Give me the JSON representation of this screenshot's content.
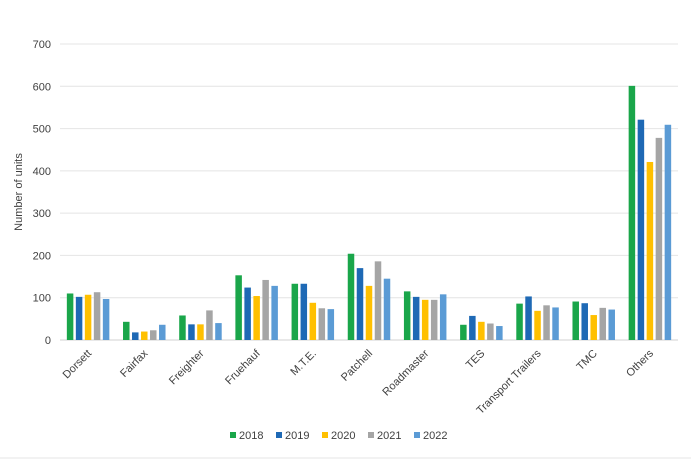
{
  "chart_data": {
    "type": "bar",
    "title": "",
    "xlabel": "",
    "ylabel": "Number of units",
    "ylim": [
      0,
      700
    ],
    "yticks": [
      0,
      100,
      200,
      300,
      400,
      500,
      600,
      700
    ],
    "grid": true,
    "legend_position": "bottom",
    "categories": [
      "Dorsett",
      "Fairfax",
      "Freighter",
      "Fruehauf",
      "M.T.E.",
      "Patchell",
      "Roadmaster",
      "TES",
      "Transport Trailers",
      "TMC",
      "Others"
    ],
    "series": [
      {
        "name": "2018",
        "color": "#1aa64a",
        "values": [
          110,
          43,
          58,
          153,
          133,
          204,
          115,
          36,
          86,
          91,
          601
        ]
      },
      {
        "name": "2019",
        "color": "#1e69b5",
        "values": [
          102,
          18,
          37,
          124,
          133,
          170,
          102,
          57,
          103,
          87,
          521
        ]
      },
      {
        "name": "2020",
        "color": "#ffc000",
        "values": [
          107,
          20,
          37,
          104,
          88,
          128,
          95,
          43,
          69,
          59,
          421
        ]
      },
      {
        "name": "2021",
        "color": "#a5a5a5",
        "values": [
          113,
          23,
          70,
          142,
          75,
          186,
          95,
          39,
          82,
          76,
          478
        ]
      },
      {
        "name": "2022",
        "color": "#5b9bd5",
        "values": [
          97,
          36,
          40,
          128,
          73,
          145,
          108,
          33,
          77,
          72,
          509
        ]
      }
    ]
  }
}
